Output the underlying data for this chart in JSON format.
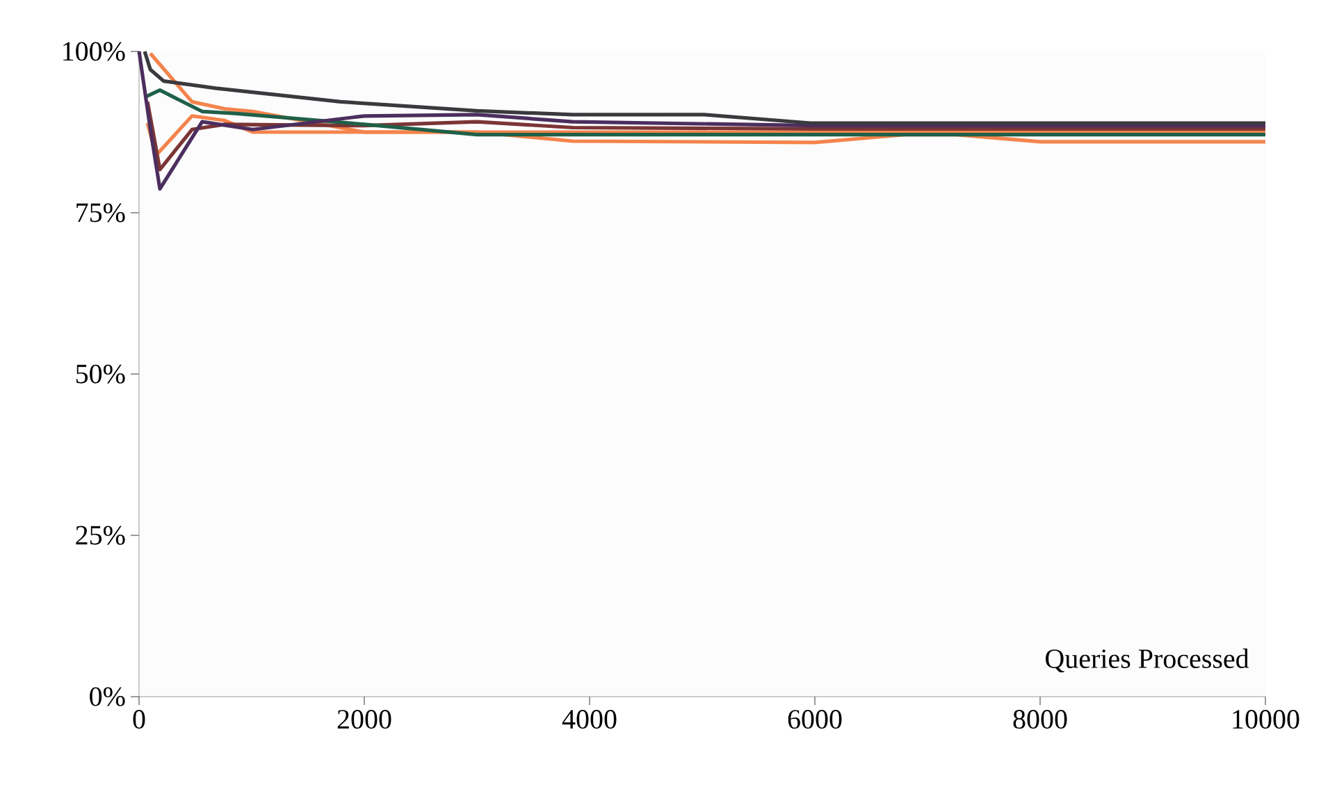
{
  "chart_data": {
    "type": "line",
    "xlabel": "Queries Processed",
    "xlim": [
      0,
      10000
    ],
    "ylim": [
      0,
      100
    ],
    "xticks": [
      0,
      2000,
      4000,
      6000,
      8000,
      10000
    ],
    "yticks": [
      {
        "value": 0,
        "label": "0%"
      },
      {
        "value": 25,
        "label": "25%"
      },
      {
        "value": 50,
        "label": "50%"
      },
      {
        "value": 75,
        "label": "75%"
      },
      {
        "value": 100,
        "label": "100%"
      }
    ],
    "marker": "none",
    "line_style": "solid",
    "series": [
      {
        "color": "#f4844c",
        "x": [
          100,
          470,
          760,
          1010,
          2000,
          3000,
          3850,
          6000,
          6800,
          7250,
          8000,
          10000
        ],
        "values": [
          99.7,
          92.2,
          91.1,
          90.7,
          87.5,
          87.5,
          86.1,
          85.9,
          87.1,
          87.1,
          86,
          86
        ]
      },
      {
        "color": "#f4844c",
        "x": [
          75,
          150,
          470,
          760,
          1010,
          2000,
          4000,
          10000
        ],
        "values": [
          88.9,
          83.9,
          90,
          89.3,
          87.5,
          87.5,
          87.5,
          87.5
        ]
      },
      {
        "color": "#7b3535",
        "x": [
          75,
          185,
          470,
          760,
          2000,
          3000,
          3850,
          6000,
          10000
        ],
        "values": [
          92.2,
          81.7,
          87.9,
          88.7,
          88.5,
          89.1,
          88.2,
          88,
          88
        ]
      },
      {
        "color": "#1f6048",
        "x": [
          50,
          185,
          560,
          850,
          2000,
          3000,
          6000,
          10000
        ],
        "values": [
          92.9,
          94,
          90.7,
          90.4,
          88.7,
          87.1,
          87.1,
          87.1
        ]
      },
      {
        "color": "#4b2e5e",
        "x": [
          0,
          100,
          185,
          560,
          1010,
          2000,
          3000,
          3850,
          6000,
          10000
        ],
        "values": [
          100,
          88,
          78.7,
          89.1,
          87.9,
          90,
          90.2,
          89.1,
          88.5,
          88.5
        ]
      },
      {
        "color": "#3a3a3e",
        "x": [
          50,
          100,
          220,
          680,
          1790,
          3000,
          3850,
          5020,
          5960,
          10000
        ],
        "values": [
          100,
          97.2,
          95.4,
          94.3,
          92.2,
          90.8,
          90.2,
          90.2,
          88.9,
          88.9
        ]
      }
    ]
  }
}
